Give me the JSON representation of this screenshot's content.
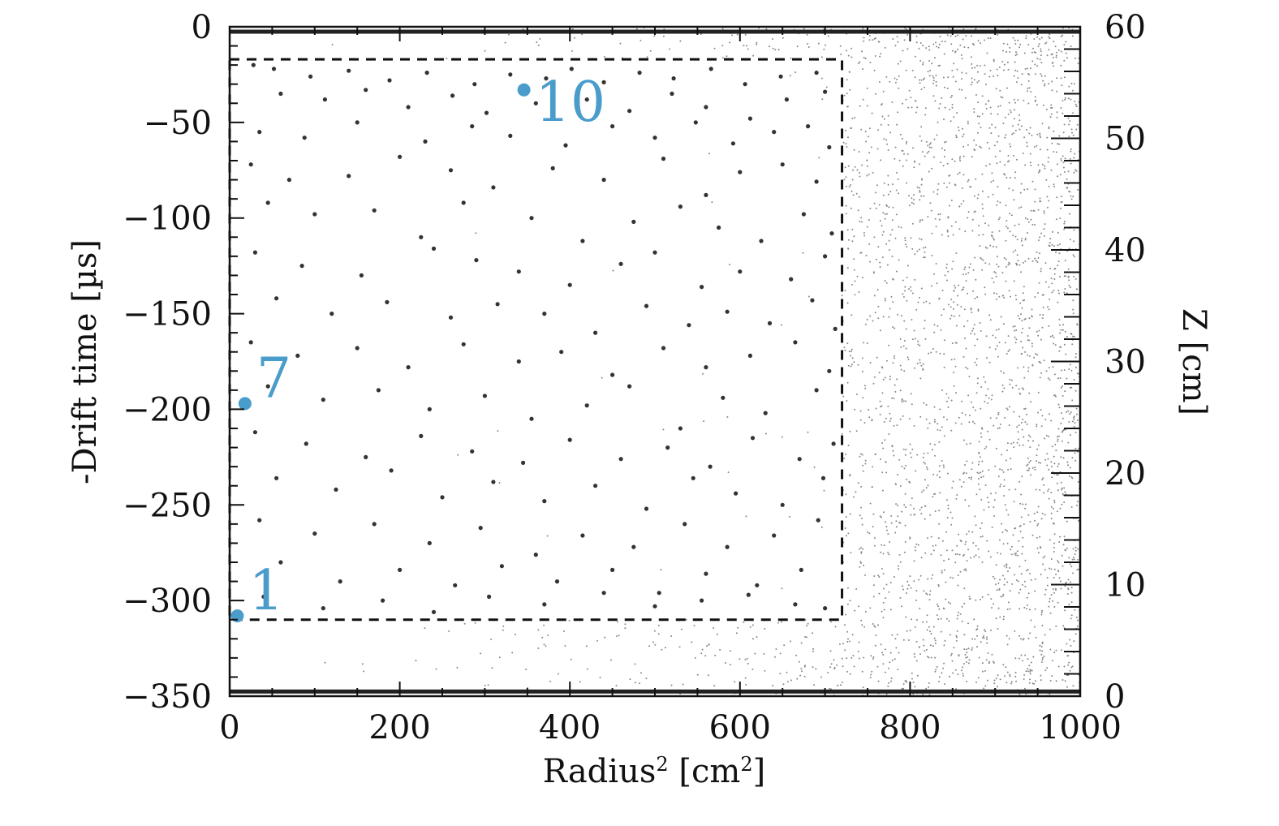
{
  "chart_data": {
    "type": "scatter",
    "xlabel": "Radius",
    "xlabel_sup": "2",
    "xlabel_unit_open": " [cm",
    "xlabel_unit_sup": "2",
    "xlabel_unit_close": "]",
    "ylabel_left": "-Drift time [µs]",
    "ylabel_right": "Z [cm]",
    "xlim": [
      0,
      1000
    ],
    "ylim_left": [
      -350,
      0
    ],
    "ylim_right": [
      0,
      60
    ],
    "x_ticks": [
      "0",
      "200",
      "400",
      "600",
      "800",
      "1000"
    ],
    "x_tick_values": [
      0,
      200,
      400,
      600,
      800,
      1000
    ],
    "y_ticks_left": [
      "0",
      "−50",
      "−100",
      "−150",
      "−200",
      "−250",
      "−300",
      "−350"
    ],
    "y_tick_values_left": [
      0,
      -50,
      -100,
      -150,
      -200,
      -250,
      -300,
      -350
    ],
    "y_ticks_right": [
      "60",
      "50",
      "40",
      "30",
      "20",
      "10",
      "0"
    ],
    "y_tick_values_right": [
      60,
      50,
      40,
      30,
      20,
      10,
      0
    ],
    "grid": false,
    "fiducial_box": {
      "x": [
        0,
        720
      ],
      "y": [
        -310,
        -17
      ],
      "style": "dashed"
    },
    "annotations": [
      {
        "label": "10",
        "x": 346,
        "y": -33,
        "color": "#4a9ccb"
      },
      {
        "label": "7",
        "x": 18,
        "y": -197,
        "color": "#4a9ccb"
      },
      {
        "label": "1",
        "x": 9,
        "y": -308,
        "color": "#4a9ccb"
      }
    ],
    "series": [
      {
        "point_color": "#333333",
        "points": [
          [
            28,
            -20
          ],
          [
            52,
            -22
          ],
          [
            95,
            -26
          ],
          [
            140,
            -23
          ],
          [
            188,
            -28
          ],
          [
            232,
            -24
          ],
          [
            288,
            -30
          ],
          [
            330,
            -25
          ],
          [
            372,
            -27
          ],
          [
            402,
            -22
          ],
          [
            440,
            -29
          ],
          [
            482,
            -24
          ],
          [
            522,
            -27
          ],
          [
            566,
            -22
          ],
          [
            606,
            -30
          ],
          [
            648,
            -26
          ],
          [
            690,
            -24
          ],
          [
            60,
            -35
          ],
          [
            112,
            -38
          ],
          [
            160,
            -33
          ],
          [
            210,
            -42
          ],
          [
            262,
            -36
          ],
          [
            302,
            -45
          ],
          [
            360,
            -40
          ],
          [
            420,
            -38
          ],
          [
            470,
            -44
          ],
          [
            520,
            -35
          ],
          [
            560,
            -42
          ],
          [
            612,
            -48
          ],
          [
            655,
            -38
          ],
          [
            700,
            -34
          ],
          [
            35,
            -55
          ],
          [
            88,
            -58
          ],
          [
            150,
            -50
          ],
          [
            230,
            -60
          ],
          [
            285,
            -52
          ],
          [
            330,
            -57
          ],
          [
            395,
            -62
          ],
          [
            450,
            -52
          ],
          [
            500,
            -58
          ],
          [
            548,
            -50
          ],
          [
            592,
            -61
          ],
          [
            640,
            -55
          ],
          [
            680,
            -52
          ],
          [
            705,
            -63
          ],
          [
            25,
            -72
          ],
          [
            70,
            -80
          ],
          [
            140,
            -78
          ],
          [
            200,
            -68
          ],
          [
            260,
            -75
          ],
          [
            310,
            -84
          ],
          [
            380,
            -74
          ],
          [
            440,
            -80
          ],
          [
            510,
            -69
          ],
          [
            560,
            -88
          ],
          [
            600,
            -76
          ],
          [
            650,
            -72
          ],
          [
            690,
            -81
          ],
          [
            45,
            -92
          ],
          [
            100,
            -98
          ],
          [
            170,
            -96
          ],
          [
            225,
            -110
          ],
          [
            275,
            -92
          ],
          [
            355,
            -100
          ],
          [
            415,
            -112
          ],
          [
            475,
            -102
          ],
          [
            530,
            -94
          ],
          [
            575,
            -105
          ],
          [
            625,
            -112
          ],
          [
            675,
            -98
          ],
          [
            708,
            -108
          ],
          [
            30,
            -118
          ],
          [
            85,
            -125
          ],
          [
            155,
            -130
          ],
          [
            240,
            -116
          ],
          [
            290,
            -122
          ],
          [
            340,
            -128
          ],
          [
            400,
            -135
          ],
          [
            460,
            -124
          ],
          [
            500,
            -118
          ],
          [
            555,
            -136
          ],
          [
            600,
            -128
          ],
          [
            660,
            -132
          ],
          [
            700,
            -120
          ],
          [
            55,
            -142
          ],
          [
            120,
            -150
          ],
          [
            185,
            -144
          ],
          [
            260,
            -152
          ],
          [
            315,
            -145
          ],
          [
            370,
            -150
          ],
          [
            430,
            -160
          ],
          [
            490,
            -146
          ],
          [
            540,
            -156
          ],
          [
            585,
            -149
          ],
          [
            635,
            -155
          ],
          [
            685,
            -143
          ],
          [
            712,
            -158
          ],
          [
            25,
            -165
          ],
          [
            80,
            -172
          ],
          [
            150,
            -168
          ],
          [
            210,
            -178
          ],
          [
            275,
            -166
          ],
          [
            340,
            -175
          ],
          [
            390,
            -170
          ],
          [
            450,
            -182
          ],
          [
            510,
            -168
          ],
          [
            560,
            -178
          ],
          [
            612,
            -172
          ],
          [
            665,
            -165
          ],
          [
            705,
            -180
          ],
          [
            45,
            -188
          ],
          [
            110,
            -195
          ],
          [
            175,
            -190
          ],
          [
            235,
            -200
          ],
          [
            300,
            -193
          ],
          [
            355,
            -205
          ],
          [
            420,
            -198
          ],
          [
            470,
            -188
          ],
          [
            530,
            -210
          ],
          [
            580,
            -194
          ],
          [
            630,
            -202
          ],
          [
            690,
            -190
          ],
          [
            30,
            -212
          ],
          [
            90,
            -218
          ],
          [
            160,
            -225
          ],
          [
            225,
            -214
          ],
          [
            285,
            -222
          ],
          [
            345,
            -228
          ],
          [
            400,
            -216
          ],
          [
            460,
            -226
          ],
          [
            515,
            -220
          ],
          [
            565,
            -230
          ],
          [
            615,
            -215
          ],
          [
            670,
            -226
          ],
          [
            710,
            -218
          ],
          [
            55,
            -236
          ],
          [
            125,
            -242
          ],
          [
            190,
            -232
          ],
          [
            250,
            -246
          ],
          [
            310,
            -238
          ],
          [
            370,
            -248
          ],
          [
            430,
            -240
          ],
          [
            490,
            -252
          ],
          [
            545,
            -236
          ],
          [
            595,
            -244
          ],
          [
            650,
            -250
          ],
          [
            698,
            -236
          ],
          [
            35,
            -258
          ],
          [
            100,
            -265
          ],
          [
            170,
            -260
          ],
          [
            235,
            -270
          ],
          [
            295,
            -262
          ],
          [
            360,
            -276
          ],
          [
            415,
            -266
          ],
          [
            475,
            -272
          ],
          [
            535,
            -260
          ],
          [
            585,
            -272
          ],
          [
            640,
            -266
          ],
          [
            692,
            -258
          ],
          [
            60,
            -280
          ],
          [
            130,
            -290
          ],
          [
            200,
            -284
          ],
          [
            265,
            -292
          ],
          [
            320,
            -282
          ],
          [
            385,
            -290
          ],
          [
            450,
            -284
          ],
          [
            505,
            -296
          ],
          [
            560,
            -286
          ],
          [
            620,
            -292
          ],
          [
            672,
            -284
          ],
          [
            40,
            -298
          ],
          [
            110,
            -304
          ],
          [
            180,
            -300
          ],
          [
            240,
            -306
          ],
          [
            305,
            -298
          ],
          [
            370,
            -302
          ],
          [
            440,
            -296
          ],
          [
            500,
            -303
          ],
          [
            555,
            -300
          ],
          [
            610,
            -297
          ],
          [
            665,
            -302
          ],
          [
            700,
            -304
          ]
        ]
      }
    ]
  }
}
